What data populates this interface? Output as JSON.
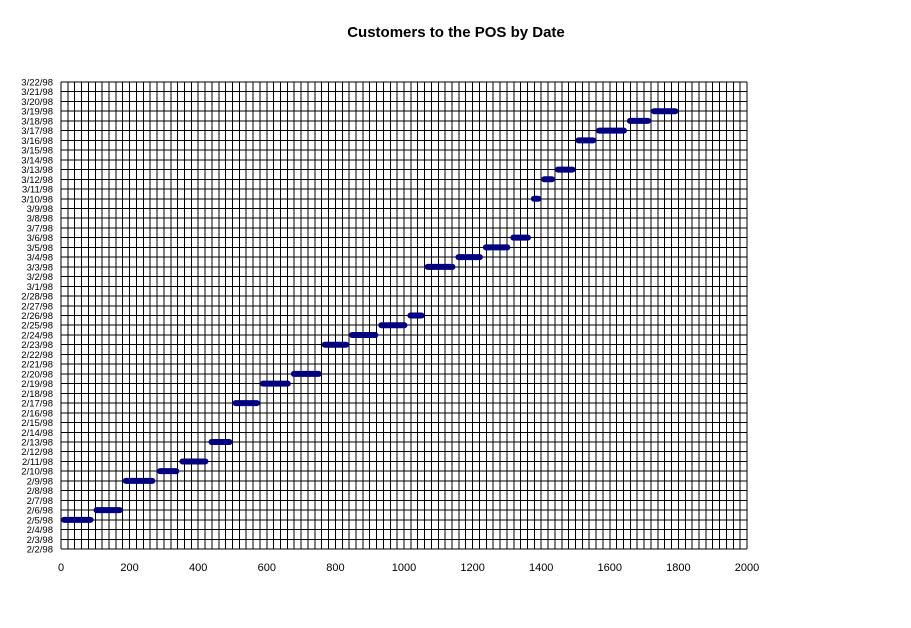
{
  "chart_data": {
    "type": "bar",
    "orientation": "horizontal-range",
    "title": "Customers to the POS by Date",
    "xlabel": "",
    "ylabel": "",
    "xlim": [
      0,
      2000
    ],
    "x_ticks": [
      "0",
      "200",
      "400",
      "600",
      "800",
      "1000",
      "1200",
      "1400",
      "1600",
      "1800",
      "2000"
    ],
    "y_categories": [
      "2/2/98",
      "2/3/98",
      "2/4/98",
      "2/5/98",
      "2/6/98",
      "2/7/98",
      "2/8/98",
      "2/9/98",
      "2/10/98",
      "2/11/98",
      "2/12/98",
      "2/13/98",
      "2/14/98",
      "2/15/98",
      "2/16/98",
      "2/17/98",
      "2/18/98",
      "2/19/98",
      "2/20/98",
      "2/21/98",
      "2/22/98",
      "2/23/98",
      "2/24/98",
      "2/25/98",
      "2/26/98",
      "2/27/98",
      "2/28/98",
      "3/1/98",
      "3/2/98",
      "3/3/98",
      "3/4/98",
      "3/5/98",
      "3/6/98",
      "3/7/98",
      "3/8/98",
      "3/9/98",
      "3/10/98",
      "3/11/98",
      "3/12/98",
      "3/13/98",
      "3/14/98",
      "3/15/98",
      "3/16/98",
      "3/17/98",
      "3/18/98",
      "3/19/98",
      "3/20/98",
      "3/21/98",
      "3/22/98"
    ],
    "grid": true,
    "legend": "none",
    "bar_color": "#000080",
    "segments": [
      {
        "date": "2/5/98",
        "start": 0,
        "end": 95
      },
      {
        "date": "2/6/98",
        "start": 95,
        "end": 180
      },
      {
        "date": "2/9/98",
        "start": 180,
        "end": 275
      },
      {
        "date": "2/10/98",
        "start": 280,
        "end": 345
      },
      {
        "date": "2/11/98",
        "start": 345,
        "end": 430
      },
      {
        "date": "2/13/98",
        "start": 430,
        "end": 500
      },
      {
        "date": "2/17/98",
        "start": 500,
        "end": 580
      },
      {
        "date": "2/19/98",
        "start": 580,
        "end": 670
      },
      {
        "date": "2/20/98",
        "start": 670,
        "end": 760
      },
      {
        "date": "2/23/98",
        "start": 760,
        "end": 840
      },
      {
        "date": "2/24/98",
        "start": 840,
        "end": 925
      },
      {
        "date": "2/25/98",
        "start": 925,
        "end": 1010
      },
      {
        "date": "2/26/98",
        "start": 1010,
        "end": 1060
      },
      {
        "date": "3/3/98",
        "start": 1060,
        "end": 1150
      },
      {
        "date": "3/4/98",
        "start": 1150,
        "end": 1230
      },
      {
        "date": "3/5/98",
        "start": 1230,
        "end": 1310
      },
      {
        "date": "3/6/98",
        "start": 1310,
        "end": 1370
      },
      {
        "date": "3/10/98",
        "start": 1370,
        "end": 1400
      },
      {
        "date": "3/12/98",
        "start": 1400,
        "end": 1440
      },
      {
        "date": "3/13/98",
        "start": 1440,
        "end": 1500
      },
      {
        "date": "3/16/98",
        "start": 1500,
        "end": 1560
      },
      {
        "date": "3/17/98",
        "start": 1560,
        "end": 1650
      },
      {
        "date": "3/18/98",
        "start": 1650,
        "end": 1720
      },
      {
        "date": "3/19/98",
        "start": 1720,
        "end": 1800
      }
    ]
  }
}
